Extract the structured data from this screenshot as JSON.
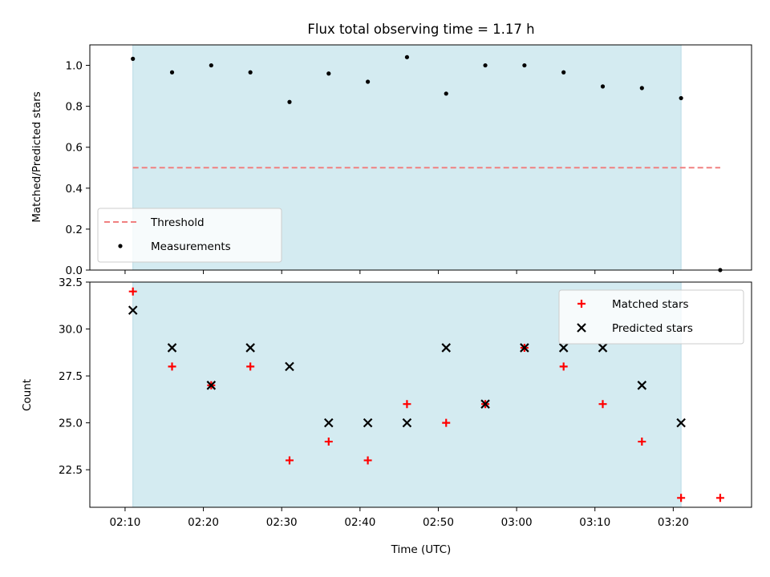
{
  "chart_data": [
    {
      "type": "scatter",
      "title": "Flux total observing time = 1.17 h",
      "xlabel": "",
      "ylabel": "Matched/Predicted stars",
      "xlim": [
        "02:05:30",
        "03:30:00"
      ],
      "ylim": [
        0,
        1.1
      ],
      "yticks": [
        0.0,
        0.2,
        0.4,
        0.6,
        0.8,
        1.0
      ],
      "ytick_labels": [
        "0.0",
        "0.2",
        "0.4",
        "0.6",
        "0.8",
        "1.0"
      ],
      "shaded_span": [
        "02:11",
        "03:21"
      ],
      "threshold": {
        "name": "Threshold",
        "x": [
          "02:11",
          "03:26"
        ],
        "y": 0.5,
        "color": "#f08080"
      },
      "series": [
        {
          "name": "Measurements",
          "color": "#000000",
          "x": [
            "02:11",
            "02:16",
            "02:21",
            "02:26",
            "02:31",
            "02:36",
            "02:41",
            "02:46",
            "02:51",
            "02:56",
            "03:01",
            "03:06",
            "03:11",
            "03:16",
            "03:21",
            "03:26"
          ],
          "y": [
            1.032,
            0.966,
            1.0,
            0.966,
            0.821,
            0.96,
            0.92,
            1.04,
            0.862,
            1.0,
            1.0,
            0.966,
            0.897,
            0.889,
            0.84,
            0.0
          ]
        }
      ],
      "legend": [
        "Threshold",
        "Measurements"
      ],
      "legend_location": "lower-left"
    },
    {
      "type": "scatter",
      "title": "",
      "xlabel": "Time (UTC)",
      "ylabel": "Count",
      "xlim": [
        "02:05:30",
        "03:30:00"
      ],
      "ylim": [
        20.5,
        32.5
      ],
      "yticks": [
        22.5,
        25.0,
        27.5,
        30.0,
        32.5
      ],
      "ytick_labels": [
        "22.5",
        "25.0",
        "27.5",
        "30.0",
        "32.5"
      ],
      "xticks": [
        "02:10",
        "02:20",
        "02:30",
        "02:40",
        "02:50",
        "03:00",
        "03:10",
        "03:20"
      ],
      "shaded_span": [
        "02:11",
        "03:21"
      ],
      "series": [
        {
          "name": "Matched stars",
          "marker": "plus",
          "color": "#ff0000",
          "x": [
            "02:11",
            "02:16",
            "02:21",
            "02:26",
            "02:31",
            "02:36",
            "02:41",
            "02:46",
            "02:51",
            "02:56",
            "03:01",
            "03:06",
            "03:11",
            "03:16",
            "03:21",
            "03:26"
          ],
          "y": [
            32,
            28,
            27,
            28,
            23,
            24,
            23,
            26,
            25,
            26,
            29,
            28,
            26,
            24,
            21,
            21
          ]
        },
        {
          "name": "Predicted stars",
          "marker": "x",
          "color": "#000000",
          "x": [
            "02:11",
            "02:16",
            "02:21",
            "02:26",
            "02:31",
            "02:36",
            "02:41",
            "02:46",
            "02:51",
            "02:56",
            "03:01",
            "03:06",
            "03:11",
            "03:16",
            "03:21"
          ],
          "y": [
            31,
            29,
            27,
            29,
            28,
            25,
            25,
            25,
            29,
            26,
            29,
            29,
            29,
            27,
            25
          ]
        }
      ],
      "legend": [
        "Matched stars",
        "Predicted stars"
      ],
      "legend_location": "upper-right"
    }
  ],
  "colors": {
    "shade": "#d4ebf1",
    "shade_edge": "#b8dbe6"
  }
}
